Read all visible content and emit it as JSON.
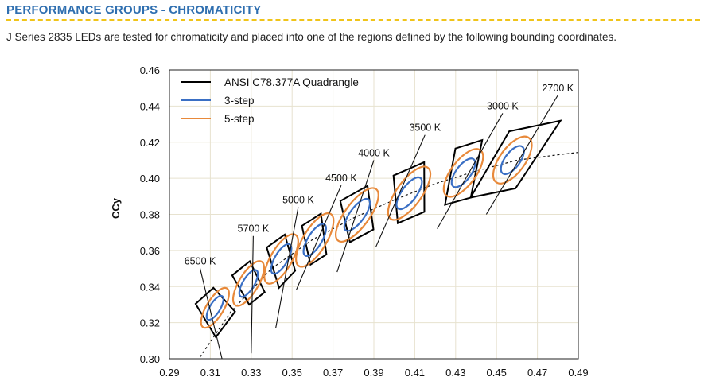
{
  "header": {
    "title": "PERFORMANCE GROUPS - CHROMATICITY",
    "intro": "J Series 2835 LEDs are tested for chromaticity and placed into one of the regions defined by the following bounding coordinates."
  },
  "colors": {
    "title": "#2f6fb0",
    "rule": "#f0c419",
    "quad": "#000000",
    "three_step": "#3a6fc4",
    "five_step": "#e8893a",
    "grid": "#e7e2cf"
  },
  "chart_data": {
    "type": "scatter",
    "title": "",
    "xlabel": "",
    "ylabel": "CCy",
    "xlim": [
      0.29,
      0.49
    ],
    "ylim": [
      0.3,
      0.46
    ],
    "grid": true,
    "legend_position": "top-left",
    "x_ticks": [
      "0.29",
      "0.31",
      "0.33",
      "0.35",
      "0.37",
      "0.39",
      "0.41",
      "0.43",
      "0.45",
      "0.47",
      "0.49"
    ],
    "y_ticks": [
      "0.30",
      "0.32",
      "0.34",
      "0.36",
      "0.38",
      "0.40",
      "0.42",
      "0.44",
      "0.46"
    ],
    "legend": [
      {
        "label": "ANSI C78.377A Quadrangle",
        "color": "#000000"
      },
      {
        "label": "3-step",
        "color": "#3a6fc4"
      },
      {
        "label": "5-step",
        "color": "#e8893a"
      }
    ],
    "planckian_locus": [
      [
        0.305,
        0.301
      ],
      [
        0.32,
        0.326
      ],
      [
        0.34,
        0.35
      ],
      [
        0.36,
        0.366
      ],
      [
        0.38,
        0.378
      ],
      [
        0.4,
        0.388
      ],
      [
        0.42,
        0.397
      ],
      [
        0.44,
        0.404
      ],
      [
        0.46,
        0.41
      ],
      [
        0.48,
        0.413
      ],
      [
        0.495,
        0.415
      ]
    ],
    "bins": [
      {
        "cct": "6500 K",
        "center": [
          0.3123,
          0.3282
        ],
        "angle": 58.6,
        "three_step": [
          0.00669,
          0.00285
        ],
        "five_step": [
          0.01115,
          0.00475
        ],
        "quad": [
          [
            0.3028,
            0.3304
          ],
          [
            0.3115,
            0.3393
          ],
          [
            0.3221,
            0.3261
          ],
          [
            0.3127,
            0.3119
          ]
        ],
        "tick_top": [
          0.305,
          0.35
        ],
        "tick_bottom": [
          0.317,
          0.294
        ]
      },
      {
        "cct": "5700 K",
        "center": [
          0.3287,
          0.3417
        ],
        "angle": 59.1,
        "three_step": [
          0.00746,
          0.0032
        ],
        "five_step": [
          0.01243,
          0.00533
        ],
        "quad": [
          [
            0.3207,
            0.3462
          ],
          [
            0.3293,
            0.354
          ],
          [
            0.3366,
            0.3369
          ],
          [
            0.329,
            0.33
          ]
        ],
        "tick_top": [
          0.331,
          0.368
        ],
        "tick_bottom": [
          0.33,
          0.303
        ]
      },
      {
        "cct": "5000 K",
        "center": [
          0.3447,
          0.3553
        ],
        "angle": 59.6,
        "three_step": [
          0.00822,
          0.00354
        ],
        "five_step": [
          0.0137,
          0.0059
        ],
        "quad": [
          [
            0.3376,
            0.3616
          ],
          [
            0.3464,
            0.3688
          ],
          [
            0.3515,
            0.3487
          ],
          [
            0.3436,
            0.3393
          ]
        ],
        "tick_top": [
          0.353,
          0.384
        ],
        "tick_bottom": [
          0.342,
          0.317
        ]
      },
      {
        "cct": "4500 K",
        "center": [
          0.3611,
          0.3658
        ],
        "angle": 58.57,
        "three_step": [
          0.00897,
          0.00383
        ],
        "five_step": [
          0.01495,
          0.00638
        ],
        "quad": [
          [
            0.3548,
            0.3736
          ],
          [
            0.3641,
            0.3804
          ],
          [
            0.3668,
            0.3578
          ],
          [
            0.359,
            0.3521
          ]
        ],
        "tick_top": [
          0.374,
          0.396
        ],
        "tick_bottom": [
          0.352,
          0.338
        ]
      },
      {
        "cct": "4000 K",
        "center": [
          0.3818,
          0.3797
        ],
        "angle": 53.72,
        "three_step": [
          0.00939,
          0.00402
        ],
        "five_step": [
          0.01565,
          0.0067
        ],
        "quad": [
          [
            0.3736,
            0.3874
          ],
          [
            0.3869,
            0.3958
          ],
          [
            0.3898,
            0.3716
          ],
          [
            0.3783,
            0.3646
          ]
        ],
        "tick_top": [
          0.39,
          0.41
        ],
        "tick_bottom": [
          0.372,
          0.348
        ]
      },
      {
        "cct": "3500 K",
        "center": [
          0.4073,
          0.3917
        ],
        "angle": 54.0,
        "three_step": [
          0.00927,
          0.00414
        ],
        "five_step": [
          0.01545,
          0.0069
        ],
        "quad": [
          [
            0.3996,
            0.4015
          ],
          [
            0.4146,
            0.4089
          ],
          [
            0.4147,
            0.3814
          ],
          [
            0.4017,
            0.3751
          ]
        ],
        "tick_top": [
          0.415,
          0.424
        ],
        "tick_bottom": [
          0.391,
          0.362
        ]
      },
      {
        "cct": "3000 K",
        "center": [
          0.4338,
          0.403
        ],
        "angle": 53.22,
        "three_step": [
          0.00834,
          0.00408
        ],
        "five_step": [
          0.0139,
          0.0068
        ],
        "quad": [
          [
            0.4299,
            0.4165
          ],
          [
            0.443,
            0.4212
          ],
          [
            0.4374,
            0.3893
          ],
          [
            0.4248,
            0.3853
          ]
        ],
        "tick_top": [
          0.453,
          0.436
        ],
        "tick_bottom": [
          0.421,
          0.372
        ]
      },
      {
        "cct": "2700 K",
        "center": [
          0.4578,
          0.4101
        ],
        "angle": 53.7,
        "three_step": [
          0.0081,
          0.0042
        ],
        "five_step": [
          0.0135,
          0.007
        ],
        "quad": [
          [
            0.4562,
            0.426
          ],
          [
            0.4813,
            0.4319
          ],
          [
            0.4593,
            0.3944
          ],
          [
            0.4373,
            0.3893
          ]
        ],
        "tick_top": [
          0.48,
          0.446
        ],
        "tick_bottom": [
          0.445,
          0.38
        ]
      }
    ]
  }
}
